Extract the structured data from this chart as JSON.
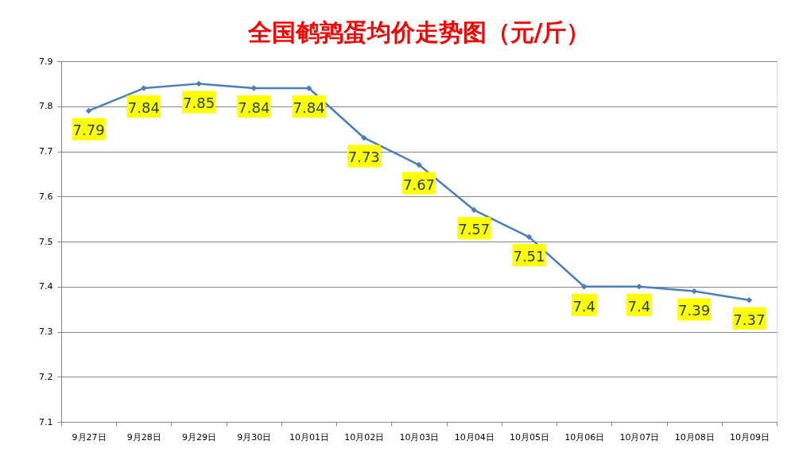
{
  "chart_data": {
    "type": "line",
    "title": "全国鹌鹑蛋均价走势图（元/斤）",
    "categories": [
      "9月27日",
      "9月28日",
      "9月29日",
      "9月30日",
      "10月01日",
      "10月02日",
      "10月03日",
      "10月04日",
      "10月05日",
      "10月06日",
      "10月07日",
      "10月08日",
      "10月09日"
    ],
    "series": [
      {
        "color": "#4a7ebb",
        "values": [
          7.79,
          7.84,
          7.85,
          7.84,
          7.84,
          7.73,
          7.67,
          7.57,
          7.51,
          7.4,
          7.4,
          7.39,
          7.37
        ]
      }
    ],
    "ylim": [
      7.1,
      7.9
    ],
    "yticks": [
      7.1,
      7.2,
      7.3,
      7.4,
      7.5,
      7.6,
      7.7,
      7.8,
      7.9
    ],
    "grid": "y",
    "marker": "diamond",
    "line_style": "solid",
    "data_labels": true
  }
}
